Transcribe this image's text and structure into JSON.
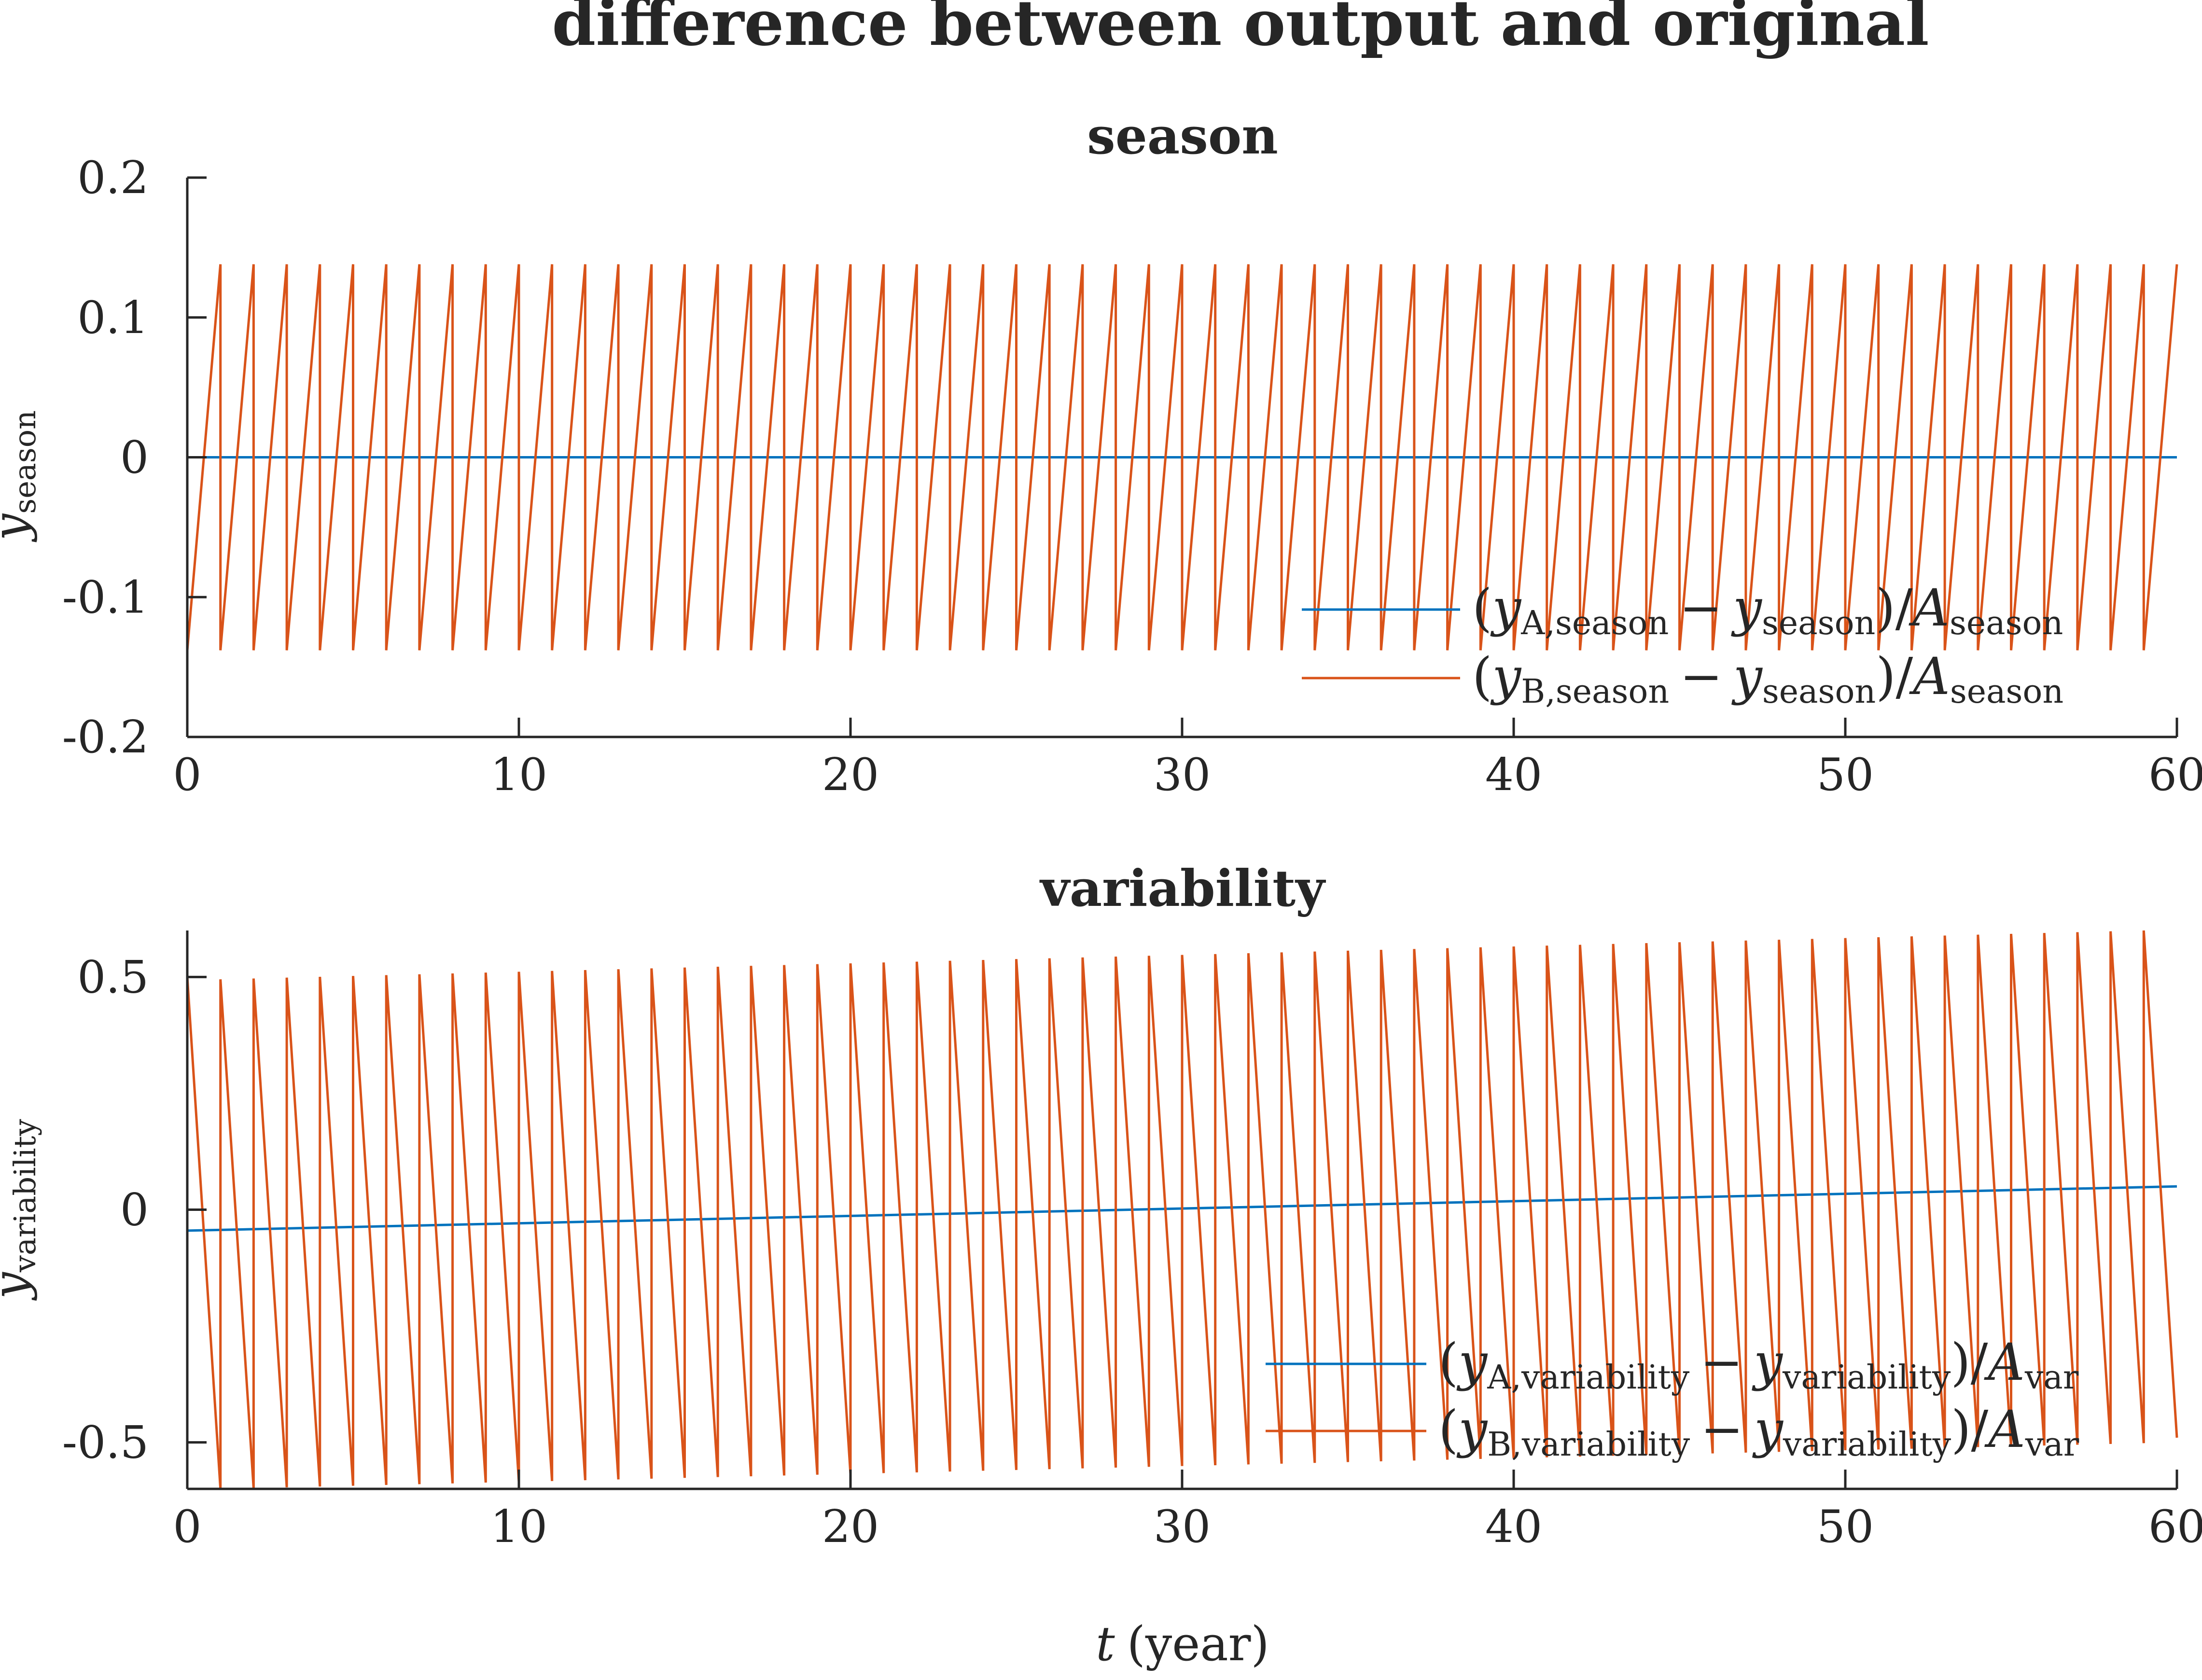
{
  "figure_title": "difference between output and original",
  "chart_data": [
    {
      "type": "line",
      "title": "season",
      "xlabel": "",
      "ylabel": {
        "main": "y",
        "sub": "season"
      },
      "xlim": [
        0,
        60
      ],
      "ylim": [
        -0.2,
        0.2
      ],
      "xticks": [
        "0",
        "10",
        "20",
        "30",
        "40",
        "50",
        "60"
      ],
      "yticks": [
        "-0.2",
        "-0.1",
        "0",
        "0.1",
        "0.2"
      ],
      "grid": false,
      "legend_position": "bottom-right",
      "series": [
        {
          "name": "(y_A,season − y_season)/A_season",
          "color": "#0072BD",
          "x": [
            0,
            60
          ],
          "y": [
            0,
            0
          ]
        },
        {
          "name": "(y_B,season − y_season)/A_season",
          "color": "#D95319",
          "pattern": "sawtooth",
          "period": 1,
          "x_range": [
            0,
            60
          ],
          "start_value": -0.138,
          "end_value": 0.138
        }
      ],
      "legend": [
        {
          "open": "(",
          "var1": "y",
          "sub1": "A,season",
          "minus": "−",
          "var2": "y",
          "sub2": "season",
          "close": ")/",
          "var3": "A",
          "sub3": "season"
        },
        {
          "open": "(",
          "var1": "y",
          "sub1": "B,season",
          "minus": "−",
          "var2": "y",
          "sub2": "season",
          "close": ")/",
          "var3": "A",
          "sub3": "season"
        }
      ]
    },
    {
      "type": "line",
      "title": "variability",
      "xlabel": {
        "var": "t",
        "unit": "(year)"
      },
      "ylabel": {
        "main": "y",
        "sub": "variability"
      },
      "xlim": [
        0,
        60
      ],
      "ylim": [
        -0.6,
        0.6
      ],
      "xticks": [
        "0",
        "10",
        "20",
        "30",
        "40",
        "50",
        "60"
      ],
      "yticks": [
        "-0.5",
        "0",
        "0.5"
      ],
      "ytick_values": [
        -0.5,
        0,
        0.5
      ],
      "grid": false,
      "legend_position": "bottom-right",
      "series": [
        {
          "name": "(y_A,variability − y_variability)/A_var",
          "color": "#0072BD",
          "x": [
            0,
            60
          ],
          "y": [
            -0.045,
            0.05
          ]
        },
        {
          "name": "(y_B,variability − y_variability)/A_var",
          "color": "#D95319",
          "pattern": "sawtooth",
          "period": 1,
          "x_range": [
            0,
            60
          ],
          "start_value_at_x0": 0.5,
          "end_value_at_x60": -0.49,
          "peak_first": 0.495,
          "peak_last": 0.6,
          "trough_first": -0.6,
          "trough_last": -0.5
        }
      ],
      "legend": [
        {
          "open": "(",
          "var1": "y",
          "sub1": "A,variability",
          "minus": "−",
          "var2": "y",
          "sub2": "variability",
          "close": ")/",
          "var3": "A",
          "sub3": "var"
        },
        {
          "open": "(",
          "var1": "y",
          "sub1": "B,variability",
          "minus": "−",
          "var2": "y",
          "sub2": "variability",
          "close": ")/",
          "var3": "A",
          "sub3": "var"
        }
      ]
    }
  ]
}
